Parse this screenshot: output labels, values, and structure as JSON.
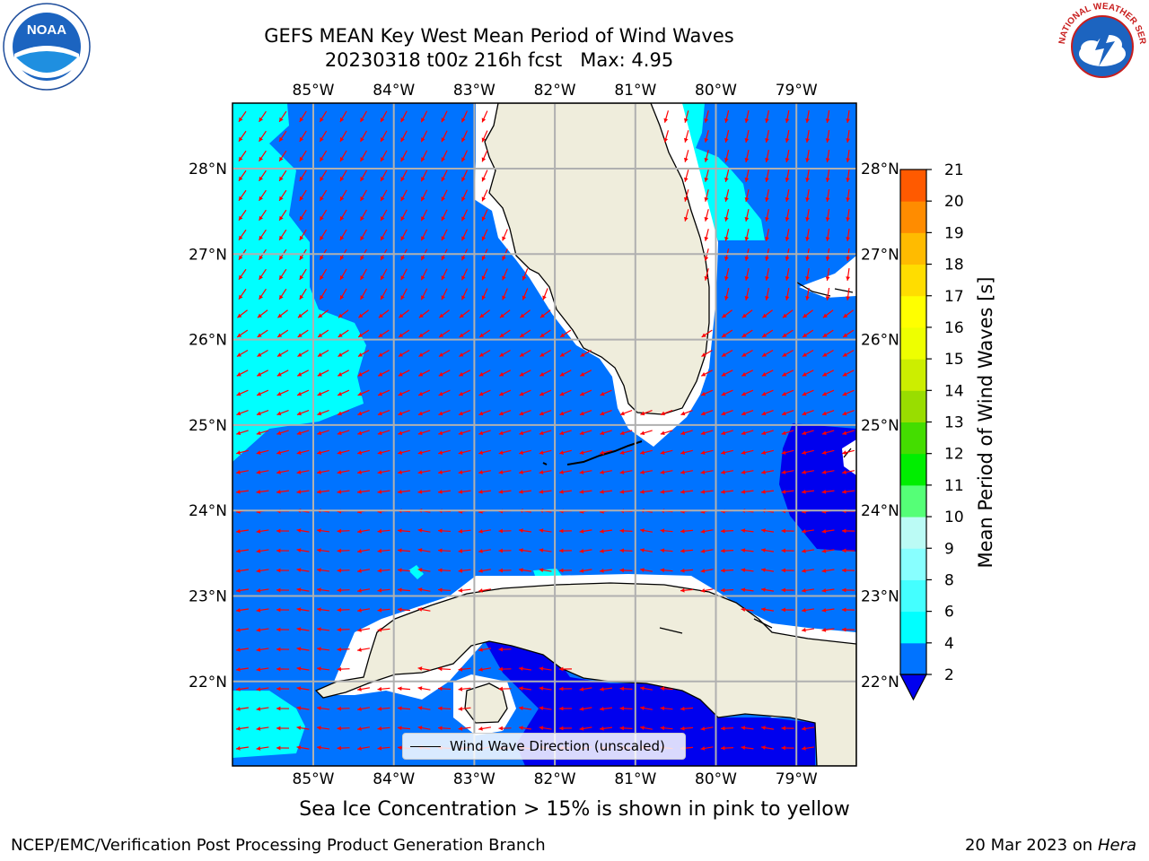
{
  "title": {
    "line1": "GEFS MEAN Key West Mean Period of Wind Waves",
    "line2": "20230318 t00z 216h fcst",
    "max_label": "Max: 4.95"
  },
  "map": {
    "lon_labels": [
      "85°W",
      "84°W",
      "83°W",
      "82°W",
      "81°W",
      "80°W",
      "79°W"
    ],
    "lat_labels": [
      "28°N",
      "27°N",
      "26°N",
      "25°N",
      "24°N",
      "23°N",
      "22°N"
    ],
    "lon_values": [
      -85,
      -84,
      -83,
      -82,
      -81,
      -80,
      -79
    ],
    "lat_values": [
      28,
      27,
      26,
      25,
      24,
      23,
      22
    ],
    "arrow_color": "#ff0000",
    "land_color": "#efeddc",
    "legend_label": "Wind Wave Direction (unscaled)"
  },
  "colorbar": {
    "title": "Mean Period of Wind Waves [s]",
    "ticks": [
      "2",
      "4",
      "6",
      "8",
      "9",
      "10",
      "11",
      "12",
      "13",
      "14",
      "15",
      "16",
      "17",
      "18",
      "19",
      "20",
      "21"
    ],
    "colors": [
      "#0073ff",
      "#00ffff",
      "#44ffff",
      "#88ffff",
      "#bbfbf5",
      "#55ff77",
      "#00ee00",
      "#44dd00",
      "#99dd00",
      "#ccee00",
      "#eeff00",
      "#ffff00",
      "#ffdd00",
      "#ffbb00",
      "#ff8c00",
      "#ff5a00",
      "#ff2a00",
      "#ff0000"
    ],
    "under_color": "#0000ee"
  },
  "note": "Sea Ice Concentration > 15% is shown in pink to yellow",
  "footer": {
    "left": "NCEP/EMC/Verification Post Processing Product Generation Branch",
    "right_date": "20 Mar 2023 on",
    "right_host": "Hera"
  },
  "logos": {
    "noaa_text": "NOAA",
    "nws_text": "NATIONAL WEATHER SERVICE"
  }
}
